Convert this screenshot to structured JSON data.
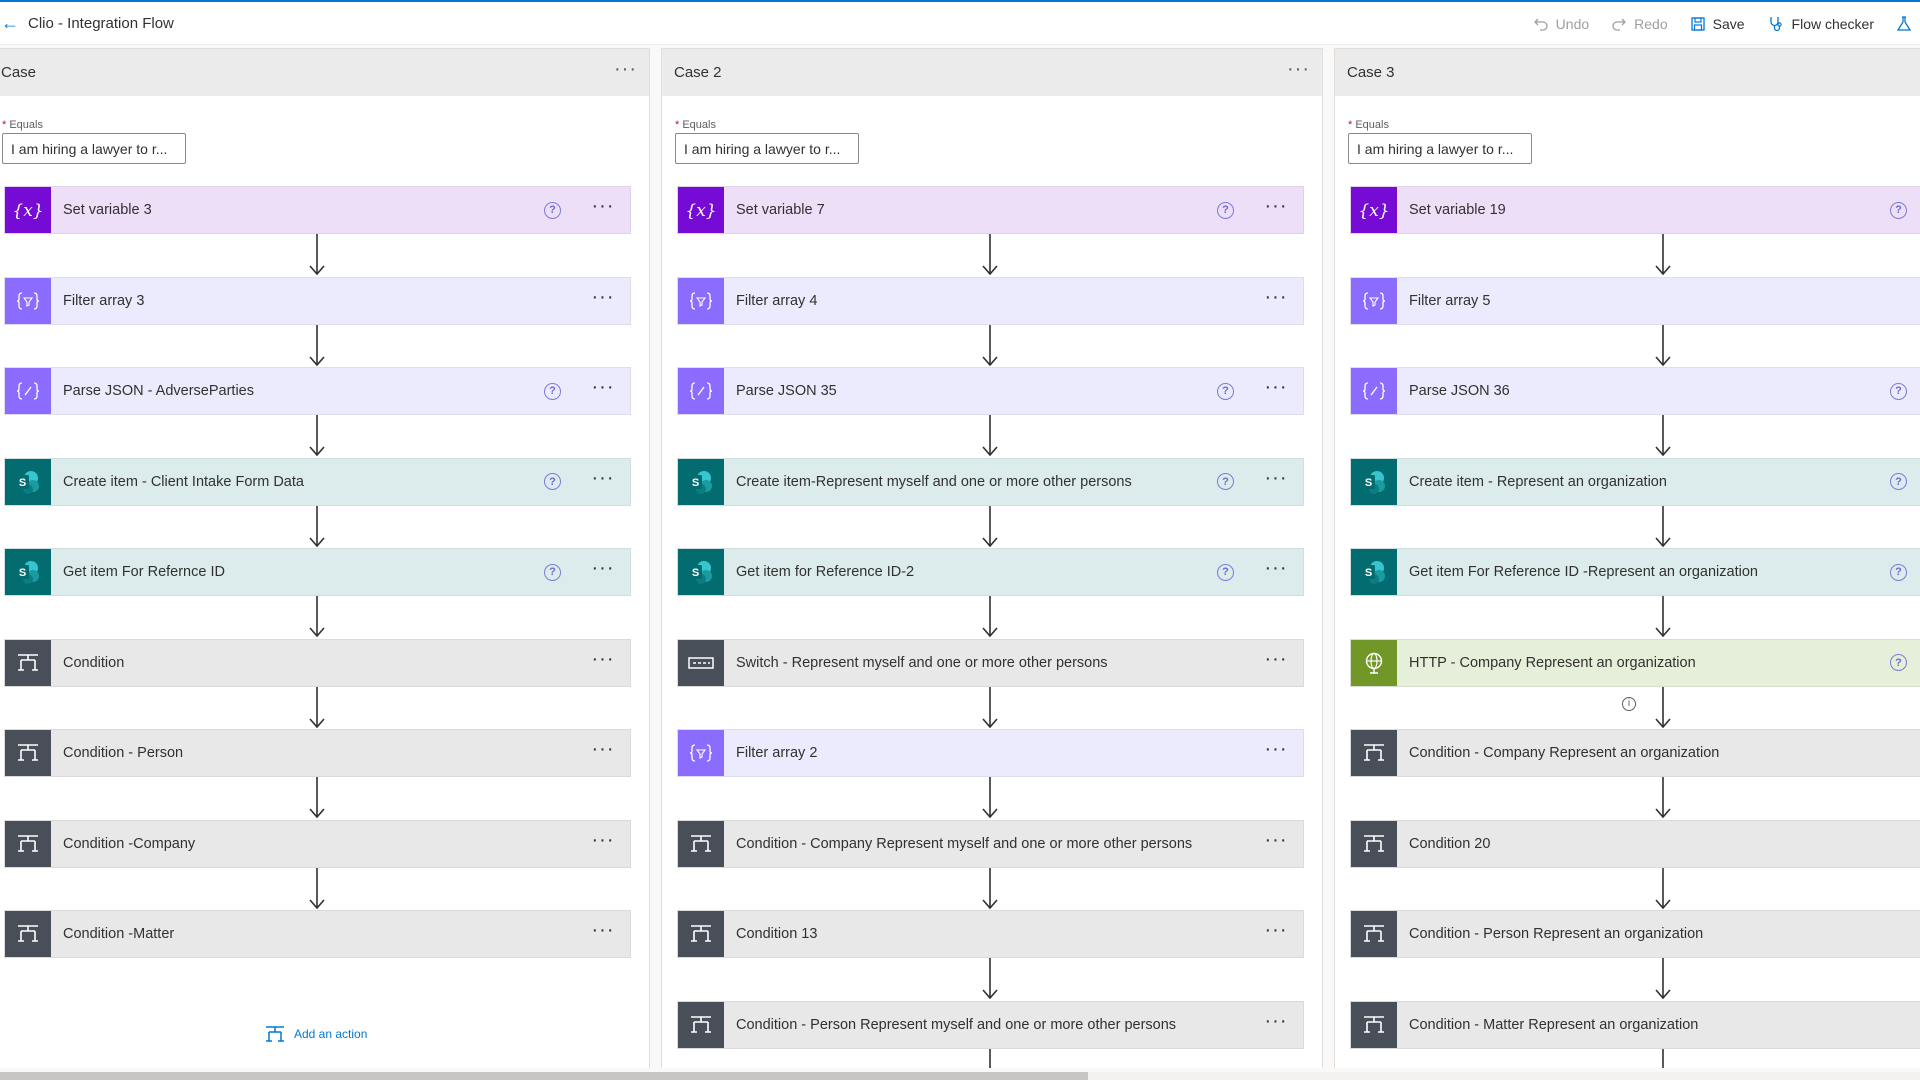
{
  "header": {
    "title": "Clio - Integration Flow",
    "undo_label": "Undo",
    "redo_label": "Redo",
    "save_label": "Save",
    "flow_checker_label": "Flow checker"
  },
  "colors": {
    "accent": "#0078d4",
    "variable": "#770bd6",
    "data_operation": "#8c6cff",
    "sharepoint": "#036c70",
    "control": "#484f58",
    "http": "#709727"
  },
  "cases": [
    {
      "title": "Case",
      "equals_label": "Equals",
      "equals_value": "I am hiring a lawyer to r...",
      "actions": [
        {
          "label": "Set variable 3",
          "type": "variable",
          "icon": "variable-icon",
          "help": true
        },
        {
          "label": "Filter array 3",
          "type": "dataop",
          "icon": "filter-array-icon",
          "help": false
        },
        {
          "label": "Parse JSON - AdverseParties",
          "type": "dataop",
          "icon": "parse-json-icon",
          "help": true
        },
        {
          "label": "Create item - Client Intake Form Data",
          "type": "sharepoint",
          "icon": "sharepoint-icon",
          "help": true
        },
        {
          "label": "Get item For Refernce ID",
          "type": "sharepoint",
          "icon": "sharepoint-icon",
          "help": true
        },
        {
          "label": "Condition",
          "type": "control",
          "icon": "condition-icon",
          "help": false
        },
        {
          "label": "Condition - Person",
          "type": "control",
          "icon": "condition-icon",
          "help": false
        },
        {
          "label": "Condition -Company",
          "type": "control",
          "icon": "condition-icon",
          "help": false
        },
        {
          "label": "Condition -Matter",
          "type": "control",
          "icon": "condition-icon",
          "help": false
        }
      ],
      "add_action_label": "Add an action"
    },
    {
      "title": "Case 2",
      "equals_label": "Equals",
      "equals_value": "I am hiring a lawyer to r...",
      "actions": [
        {
          "label": "Set variable 7",
          "type": "variable",
          "icon": "variable-icon",
          "help": true
        },
        {
          "label": "Filter array 4",
          "type": "dataop",
          "icon": "filter-array-icon",
          "help": false
        },
        {
          "label": "Parse JSON 35",
          "type": "dataop",
          "icon": "parse-json-icon",
          "help": true
        },
        {
          "label": "Create item-Represent myself and one or more other persons",
          "type": "sharepoint",
          "icon": "sharepoint-icon",
          "help": true
        },
        {
          "label": "Get item for Reference ID-2",
          "type": "sharepoint",
          "icon": "sharepoint-icon",
          "help": true
        },
        {
          "label": "Switch - Represent myself and one or more other persons",
          "type": "control",
          "icon": "switch-icon",
          "help": false
        },
        {
          "label": "Filter array 2",
          "type": "dataop",
          "icon": "filter-array-icon",
          "help": false
        },
        {
          "label": "Condition - Company Represent myself and one or more other persons",
          "type": "control",
          "icon": "condition-icon",
          "help": false
        },
        {
          "label": "Condition 13",
          "type": "control",
          "icon": "condition-icon",
          "help": false
        },
        {
          "label": "Condition - Person Represent myself and one or more other persons",
          "type": "control",
          "icon": "condition-icon",
          "help": false
        }
      ]
    },
    {
      "title": "Case 3",
      "equals_label": "Equals",
      "equals_value": "I am hiring a lawyer to r...",
      "actions": [
        {
          "label": "Set variable 19",
          "type": "variable",
          "icon": "variable-icon",
          "help": true
        },
        {
          "label": "Filter array 5",
          "type": "dataop",
          "icon": "filter-array-icon",
          "help": false
        },
        {
          "label": "Parse JSON 36",
          "type": "dataop",
          "icon": "parse-json-icon",
          "help": true
        },
        {
          "label": "Create item - Represent an organization",
          "type": "sharepoint",
          "icon": "sharepoint-icon",
          "help": true
        },
        {
          "label": "Get item For Reference ID -Represent an organization",
          "type": "sharepoint",
          "icon": "sharepoint-icon",
          "help": true
        },
        {
          "label": "HTTP - Company Represent an organization",
          "type": "http",
          "icon": "http-globe-icon",
          "help": true
        },
        {
          "label": "Condition - Company Represent an organization",
          "type": "control",
          "icon": "condition-icon",
          "help": false
        },
        {
          "label": "Condition 20",
          "type": "control",
          "icon": "condition-icon",
          "help": false
        },
        {
          "label": "Condition - Person Represent an organization",
          "type": "control",
          "icon": "condition-icon",
          "help": false
        },
        {
          "label": "Condition - Matter Represent an organization",
          "type": "control",
          "icon": "condition-icon",
          "help": false
        }
      ]
    }
  ]
}
